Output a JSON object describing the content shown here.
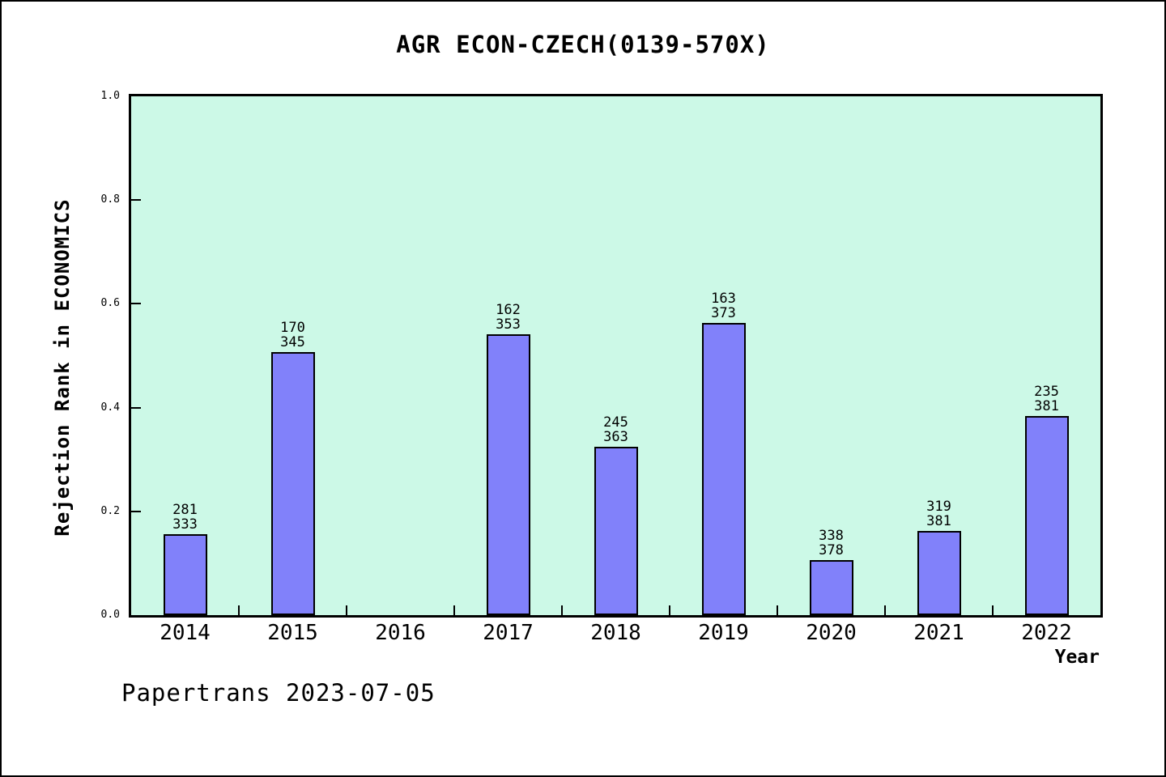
{
  "footer": {
    "text": "Papertrans 2023-07-05"
  },
  "chart_data": {
    "type": "bar",
    "title": "AGR ECON-CZECH(0139-570X)",
    "xlabel": "Year",
    "ylabel": "Rejection Rank in ECONOMICS",
    "ylim": [
      0,
      1
    ],
    "y_ticks": [
      "0.0",
      "0.2",
      "0.4",
      "0.6",
      "0.8",
      "1.0"
    ],
    "grid": false,
    "legend": "none",
    "colors": {
      "bar_fill": "#8181FA",
      "bar_border": "#000000",
      "plot_background": "#CCF9E7",
      "axis": "#000000",
      "text": "#000000"
    },
    "categories": [
      "2014",
      "2015",
      "2016",
      "2017",
      "2018",
      "2019",
      "2020",
      "2021",
      "2022"
    ],
    "bars": [
      {
        "year": "2014",
        "rank": 281,
        "total": 333,
        "value": 0.156
      },
      {
        "year": "2015",
        "rank": 170,
        "total": 345,
        "value": 0.507
      },
      {
        "year": "2016",
        "rank": null,
        "total": null,
        "value": null
      },
      {
        "year": "2017",
        "rank": 162,
        "total": 353,
        "value": 0.541
      },
      {
        "year": "2018",
        "rank": 245,
        "total": 363,
        "value": 0.325
      },
      {
        "year": "2019",
        "rank": 163,
        "total": 373,
        "value": 0.563
      },
      {
        "year": "2020",
        "rank": 338,
        "total": 378,
        "value": 0.106
      },
      {
        "year": "2021",
        "rank": 319,
        "total": 381,
        "value": 0.163
      },
      {
        "year": "2022",
        "rank": 235,
        "total": 381,
        "value": 0.383
      }
    ]
  }
}
